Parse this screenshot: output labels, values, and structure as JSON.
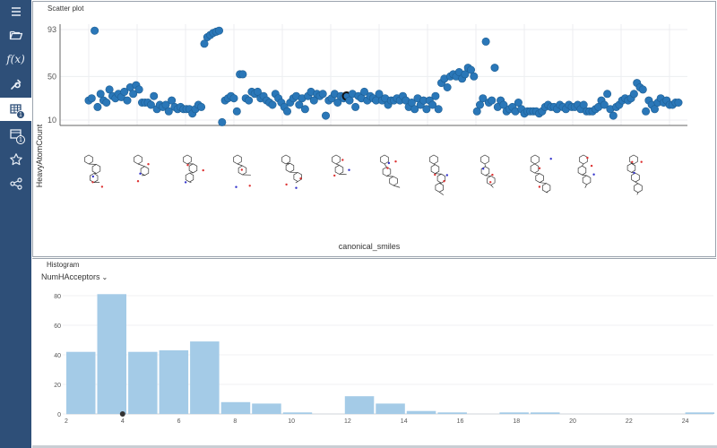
{
  "sidebar": {
    "items": [
      {
        "icon": "menu-icon"
      },
      {
        "icon": "folder-open-icon"
      },
      {
        "icon": "function-icon",
        "label": "f(x)"
      },
      {
        "icon": "wrench-icon"
      },
      {
        "icon": "table-icon",
        "badge": "1",
        "active": true
      },
      {
        "icon": "views-icon",
        "badge": "1"
      },
      {
        "icon": "star-icon"
      },
      {
        "icon": "share-icon"
      }
    ]
  },
  "scatter": {
    "title": "Scatter plot",
    "y_axis_label": "HeavyAtomCount",
    "x_axis_label": "canonical_smiles"
  },
  "histogram": {
    "title": "Histogram",
    "column": "NumHAcceptors",
    "dropdown_icon": "chevron-down-icon"
  },
  "chart_data": [
    {
      "type": "scatter",
      "title": "Scatter plot",
      "xlabel": "canonical_smiles",
      "ylabel": "HeavyAtomCount",
      "ylim": [
        10,
        93
      ],
      "yticks": [
        10,
        50,
        93
      ],
      "marker_color": "#2a77b8",
      "x_categorical": true,
      "grid": true,
      "y_sequence": [
        28,
        30,
        92,
        22,
        34,
        28,
        26,
        38,
        32,
        30,
        34,
        31,
        36,
        28,
        40,
        34,
        42,
        38,
        26,
        26,
        26,
        24,
        32,
        20,
        24,
        22,
        24,
        18,
        28,
        22,
        20,
        22,
        20,
        20,
        20,
        16,
        20,
        24,
        22,
        80,
        86,
        88,
        90,
        91,
        92,
        8,
        28,
        30,
        32,
        30,
        18,
        52,
        52,
        30,
        28,
        36,
        34,
        36,
        30,
        32,
        28,
        26,
        24,
        34,
        30,
        26,
        22,
        18,
        26,
        30,
        32,
        24,
        30,
        20,
        32,
        36,
        28,
        34,
        32,
        34,
        14,
        28,
        30,
        34,
        26,
        32,
        30,
        32,
        28,
        34,
        22,
        32,
        30,
        36,
        28,
        32,
        30,
        28,
        34,
        28,
        30,
        24,
        28,
        28,
        30,
        28,
        32,
        28,
        22,
        26,
        20,
        30,
        24,
        28,
        20,
        28,
        24,
        32,
        20,
        44,
        48,
        40,
        50,
        52,
        50,
        54,
        48,
        52,
        58,
        56,
        50,
        18,
        24,
        30,
        82,
        26,
        28,
        58,
        22,
        28,
        24,
        18,
        20,
        22,
        18,
        26,
        20,
        16,
        18,
        18,
        18,
        18,
        16,
        18,
        22,
        24,
        22,
        22,
        20,
        24,
        22,
        20,
        24,
        22,
        22,
        24,
        20,
        24,
        18,
        18,
        18,
        20,
        22,
        28,
        24,
        34,
        20,
        14,
        22,
        24,
        28,
        30,
        28,
        30,
        34,
        44,
        40,
        38,
        18,
        28,
        24,
        20,
        26,
        30,
        26,
        28,
        24,
        24,
        26,
        26
      ],
      "highlighted_index": 87,
      "row_labels": "structure images (rendered molecules)"
    },
    {
      "type": "bar",
      "title": "Histogram",
      "xlabel": "NumHAcceptors",
      "ylabel": "",
      "xlim": [
        2,
        25
      ],
      "ylim": [
        0,
        80
      ],
      "xticks": [
        2,
        4,
        6,
        8,
        10,
        12,
        14,
        16,
        18,
        20,
        22,
        24
      ],
      "yticks": [
        0,
        20,
        40,
        60,
        80
      ],
      "bin_width": 1.1,
      "bins": [
        {
          "start": 2.0,
          "count": 42
        },
        {
          "start": 3.1,
          "count": 81
        },
        {
          "start": 4.2,
          "count": 42
        },
        {
          "start": 5.3,
          "count": 43
        },
        {
          "start": 6.4,
          "count": 49
        },
        {
          "start": 7.5,
          "count": 8
        },
        {
          "start": 8.6,
          "count": 7
        },
        {
          "start": 9.7,
          "count": 1
        },
        {
          "start": 10.8,
          "count": 0
        },
        {
          "start": 11.9,
          "count": 12
        },
        {
          "start": 13.0,
          "count": 7
        },
        {
          "start": 14.1,
          "count": 2
        },
        {
          "start": 15.2,
          "count": 1
        },
        {
          "start": 16.3,
          "count": 0
        },
        {
          "start": 17.4,
          "count": 1
        },
        {
          "start": 18.5,
          "count": 1
        },
        {
          "start": 19.6,
          "count": 0
        },
        {
          "start": 20.7,
          "count": 0
        },
        {
          "start": 21.8,
          "count": 0
        },
        {
          "start": 22.9,
          "count": 0
        },
        {
          "start": 24.0,
          "count": 1
        }
      ],
      "bar_color": "#a4cbe7",
      "marker_value": 4
    }
  ]
}
